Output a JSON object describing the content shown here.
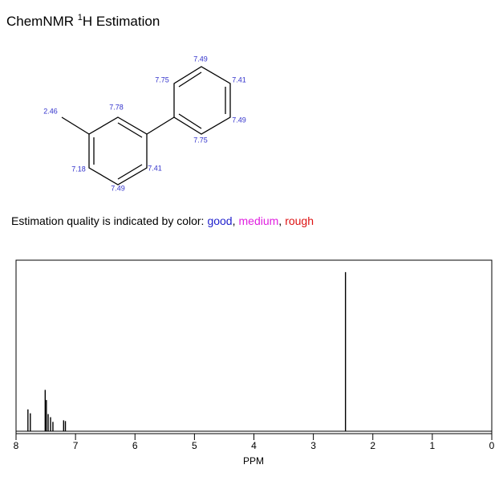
{
  "header": {
    "prefix": "ChemNMR",
    "superscript": "1",
    "suffix": "H Estimation"
  },
  "molecule": {
    "shifts": [
      "2.46",
      "7.78",
      "7.18",
      "7.49",
      "7.41",
      "7.75",
      "7.49",
      "7.41",
      "7.49",
      "7.75"
    ]
  },
  "quality": {
    "prefix": "Estimation quality is indicated by color:",
    "separator": ",",
    "levels": [
      {
        "label": "good",
        "color": "#1f1fcc"
      },
      {
        "label": "medium",
        "color": "#e020e0"
      },
      {
        "label": "rough",
        "color": "#dd1111"
      }
    ]
  },
  "chart_data": {
    "type": "spectrum",
    "x_label": "PPM",
    "color": "#000000",
    "x": [
      7.8,
      7.76,
      7.51,
      7.49,
      7.46,
      7.42,
      7.38,
      7.2,
      7.17,
      2.46
    ],
    "values": [
      28,
      23,
      53,
      40,
      22,
      18,
      12,
      14,
      13,
      204
    ],
    "xlim": [
      8,
      0
    ],
    "xticks": [
      8,
      7,
      6,
      5,
      4,
      3,
      2,
      1,
      0
    ],
    "ylim": [
      0,
      210
    ]
  }
}
